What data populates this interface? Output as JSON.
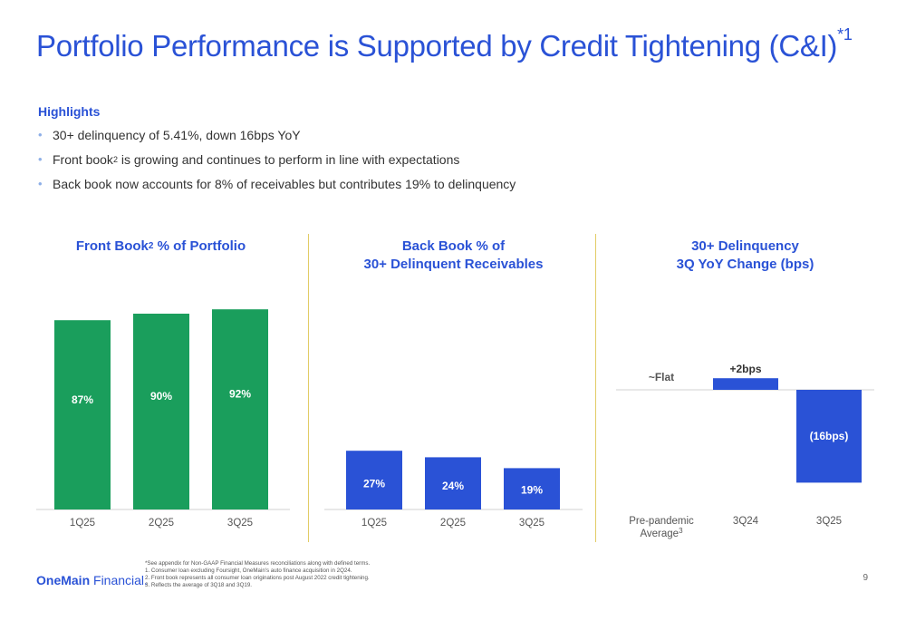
{
  "title": "Portfolio Performance is Supported by Credit Tightening (C&I)",
  "title_sup": "*1",
  "highlights": {
    "heading": "Highlights",
    "b1": "30+ delinquency of 5.41%, down 16bps YoY",
    "b2_pre": "Front book",
    "b2_sup": "2",
    "b2_post": " is growing and continues to perform in line with expectations",
    "b3": "Back book now accounts for 8% of receivables but contributes 19% to delinquency"
  },
  "colors": {
    "green": "#1a9e5c",
    "blue": "#2a52d6",
    "baseline": "#d0d0d0"
  },
  "chart_titles": {
    "front_pre": "Front Book",
    "front_sup": "2",
    "front_post": " % of Portfolio",
    "back_l1": "Back Book % of",
    "back_l2": "30+ Delinquent Receivables",
    "delq_l1": "30+ Delinquency",
    "delq_l2": "3Q YoY Change (bps)"
  },
  "chart_data": [
    {
      "type": "bar",
      "title": "Front Book2 % of Portfolio",
      "categories": [
        "1Q25",
        "2Q25",
        "3Q25"
      ],
      "values": [
        87,
        90,
        92
      ],
      "labels": [
        "87%",
        "90%",
        "92%"
      ],
      "ylim": [
        0,
        100
      ],
      "color": "#1a9e5c"
    },
    {
      "type": "bar",
      "title": "Back Book % of 30+ Delinquent Receivables",
      "categories": [
        "1Q25",
        "2Q25",
        "3Q25"
      ],
      "values": [
        27,
        24,
        19
      ],
      "labels": [
        "27%",
        "24%",
        "19%"
      ],
      "ylim": [
        0,
        100
      ],
      "color": "#2a52d6"
    },
    {
      "type": "bar",
      "title": "30+ Delinquency 3Q YoY Change (bps)",
      "categories": [
        "Pre-pandemic Average3",
        "3Q24",
        "3Q25"
      ],
      "values": [
        0,
        2,
        -16
      ],
      "labels": [
        "~Flat",
        "+2bps",
        "(16bps)"
      ],
      "color": "#2a52d6"
    }
  ],
  "xcat_prepandemic_l1": "Pre-pandemic",
  "xcat_prepandemic_l2": "Average",
  "xcat_prepandemic_sup": "3",
  "logo": {
    "part1": "OneMain",
    "part2": " Financial",
    "mark": "."
  },
  "footnotes": [
    "*See appendix for Non-GAAP Financial Measures reconciliations along with defined terms.",
    "1. Consumer loan excluding Foursight, OneMain's auto finance acquisition in 2Q24.",
    "2. Front book represents all consumer loan originations post August 2022 credit tightening.",
    "3. Reflects the average of 3Q18 and 3Q19."
  ],
  "page_number": "9"
}
